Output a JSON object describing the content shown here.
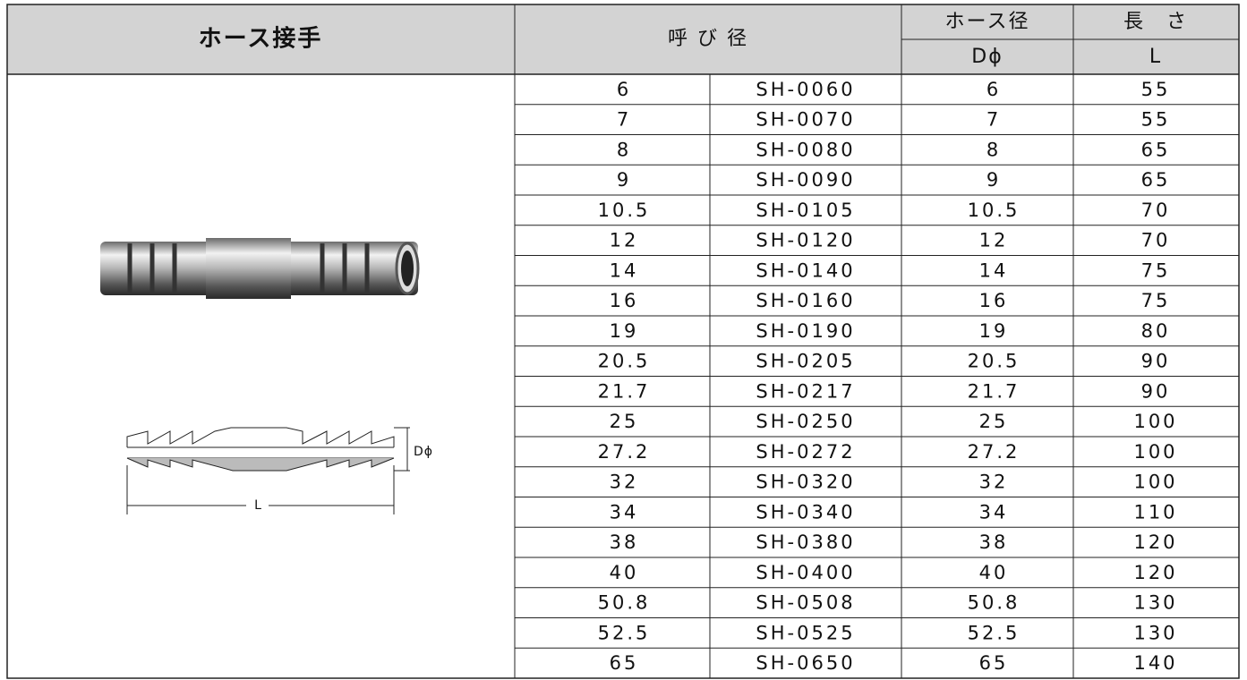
{
  "header": {
    "title": "ホース接手",
    "nominal": "呼 び 径",
    "hose_diameter": "ホース径",
    "hose_diameter_symbol": "Dϕ",
    "length": "長　さ",
    "length_symbol": "L"
  },
  "diagram": {
    "d_label": "Dϕ",
    "l_label": "L"
  },
  "table": {
    "rows": [
      [
        "6",
        "SH-0060",
        "6",
        "55"
      ],
      [
        "7",
        "SH-0070",
        "7",
        "55"
      ],
      [
        "8",
        "SH-0080",
        "8",
        "65"
      ],
      [
        "9",
        "SH-0090",
        "9",
        "65"
      ],
      [
        "10.5",
        "SH-0105",
        "10.5",
        "70"
      ],
      [
        "12",
        "SH-0120",
        "12",
        "70"
      ],
      [
        "14",
        "SH-0140",
        "14",
        "75"
      ],
      [
        "16",
        "SH-0160",
        "16",
        "75"
      ],
      [
        "19",
        "SH-0190",
        "19",
        "80"
      ],
      [
        "20.5",
        "SH-0205",
        "20.5",
        "90"
      ],
      [
        "21.7",
        "SH-0217",
        "21.7",
        "90"
      ],
      [
        "25",
        "SH-0250",
        "25",
        "100"
      ],
      [
        "27.2",
        "SH-0272",
        "27.2",
        "100"
      ],
      [
        "32",
        "SH-0320",
        "32",
        "100"
      ],
      [
        "34",
        "SH-0340",
        "34",
        "110"
      ],
      [
        "38",
        "SH-0380",
        "38",
        "120"
      ],
      [
        "40",
        "SH-0400",
        "40",
        "120"
      ],
      [
        "50.8",
        "SH-0508",
        "50.8",
        "130"
      ],
      [
        "52.5",
        "SH-0525",
        "52.5",
        "130"
      ],
      [
        "65",
        "SH-0650",
        "65",
        "140"
      ]
    ]
  }
}
